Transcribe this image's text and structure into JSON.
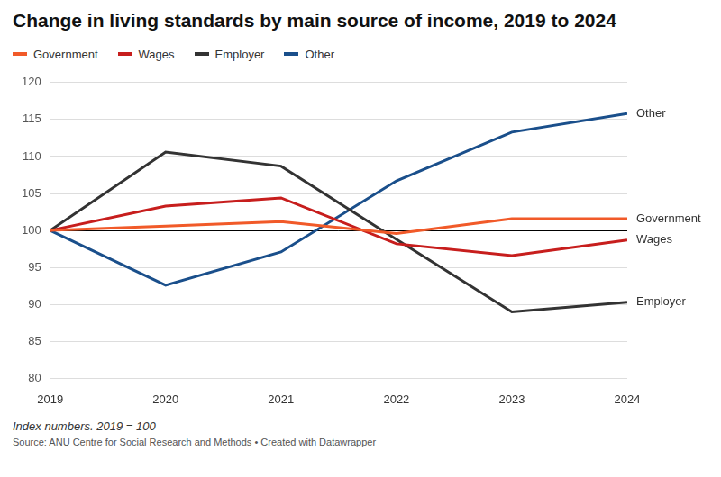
{
  "chart_data": {
    "type": "line",
    "title": "Change in living standards by main source of income, 2019 to 2024",
    "categories": [
      "2019",
      "2020",
      "2021",
      "2022",
      "2023",
      "2024"
    ],
    "series": [
      {
        "name": "Government",
        "color": "#f15a29",
        "values": [
          100,
          100.6,
          101.2,
          99.6,
          101.6,
          101.6
        ]
      },
      {
        "name": "Wages",
        "color": "#c71e1d",
        "values": [
          100,
          103.3,
          104.4,
          98.2,
          96.6,
          98.7
        ]
      },
      {
        "name": "Employer",
        "color": "#333333",
        "values": [
          100,
          110.6,
          108.7,
          98.8,
          89.0,
          90.3
        ]
      },
      {
        "name": "Other",
        "color": "#1a4f8b",
        "values": [
          100,
          92.6,
          97.1,
          106.7,
          113.3,
          115.8
        ]
      }
    ],
    "ylim": [
      80,
      120
    ],
    "yticks": [
      80,
      85,
      90,
      95,
      100,
      105,
      110,
      115,
      120
    ],
    "baseline": 100,
    "grid": true,
    "legend": "top-left",
    "note": "Index numbers. 2019 = 100",
    "source": "Source: ANU Centre for Social Research and Methods • Created with Datawrapper"
  }
}
